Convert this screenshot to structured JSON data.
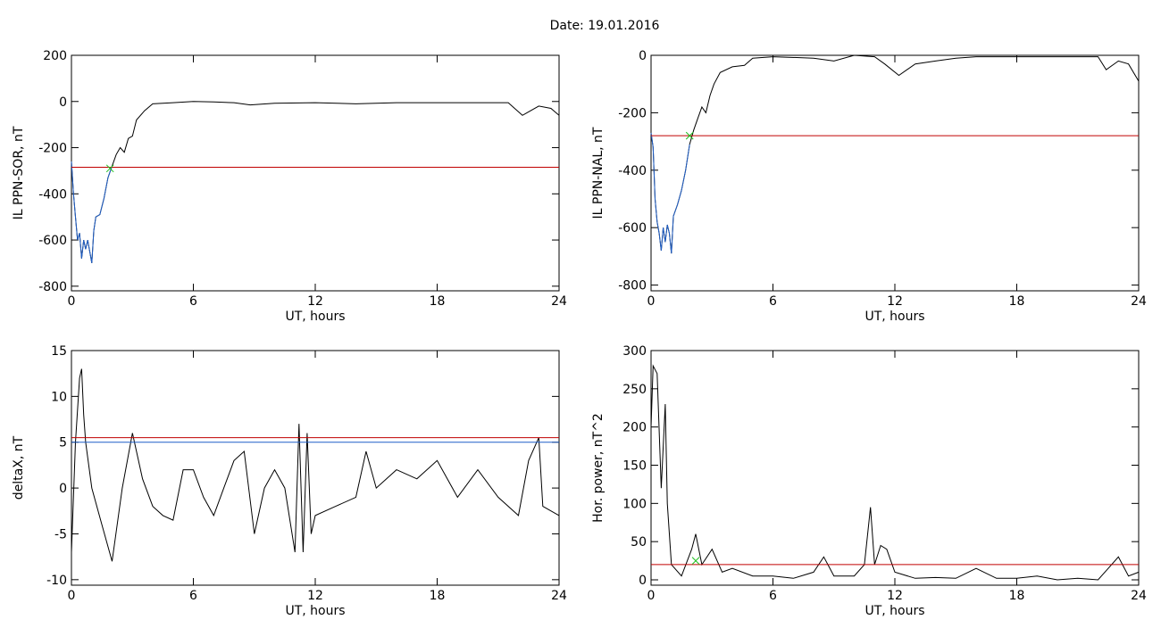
{
  "title": "Date:  19.01.2016",
  "chart_data": [
    {
      "type": "line",
      "xlabel": "UT, hours",
      "ylabel": "IL PPN-SOR, nT",
      "xlim": [
        0,
        24
      ],
      "xticks": [
        0,
        6,
        12,
        18,
        24
      ],
      "ylim": [
        -820,
        200
      ],
      "yticks": [
        -800,
        -600,
        -400,
        -200,
        0,
        200
      ],
      "series": [
        {
          "color": "#000000",
          "x": [
            0,
            0.1,
            0.2,
            0.3,
            0.4,
            0.5,
            0.6,
            0.7,
            0.8,
            0.9,
            1.0,
            1.1,
            1.2,
            1.4,
            1.6,
            1.8,
            2.0,
            2.2,
            2.4,
            2.6,
            2.8,
            3.0,
            3.2,
            3.6,
            4.0,
            5,
            6,
            7,
            8,
            8.8,
            10,
            12,
            14,
            16,
            18,
            20,
            21.5,
            22.2,
            22.6,
            23,
            23.6,
            24
          ],
          "values": [
            -260,
            -400,
            -500,
            -600,
            -570,
            -680,
            -600,
            -640,
            -600,
            -650,
            -700,
            -560,
            -500,
            -490,
            -420,
            -330,
            -280,
            -230,
            -200,
            -220,
            -160,
            -150,
            -80,
            -40,
            -10,
            -5,
            0,
            -2,
            -5,
            -15,
            -8,
            -5,
            -10,
            -5,
            -5,
            -5,
            -5,
            -60,
            -40,
            -20,
            -30,
            -60
          ]
        },
        {
          "color": "#1f5fc8",
          "x": [
            0,
            0.1,
            0.2,
            0.3,
            0.4,
            0.5,
            0.6,
            0.7,
            0.8,
            0.9,
            1.0,
            1.1,
            1.2,
            1.4,
            1.6,
            1.8,
            2.0
          ],
          "values": [
            -260,
            -400,
            -500,
            -600,
            -570,
            -680,
            -600,
            -640,
            -600,
            -650,
            -700,
            -560,
            -500,
            -490,
            -420,
            -330,
            -280
          ]
        },
        {
          "color": "#c00000",
          "x": [
            0,
            24
          ],
          "values": [
            -285,
            -285
          ]
        },
        {
          "color": "#20c020",
          "marker": "x",
          "x": [
            1.9
          ],
          "values": [
            -290
          ]
        }
      ]
    },
    {
      "type": "line",
      "xlabel": "UT, hours",
      "ylabel": "IL PPN-NAL, nT",
      "xlim": [
        0,
        24
      ],
      "xticks": [
        0,
        6,
        12,
        18,
        24
      ],
      "ylim": [
        -820,
        0
      ],
      "yticks": [
        -800,
        -600,
        -400,
        -200,
        0
      ],
      "series": [
        {
          "color": "#000000",
          "x": [
            0,
            0.1,
            0.2,
            0.3,
            0.4,
            0.5,
            0.6,
            0.7,
            0.8,
            0.9,
            1.0,
            1.1,
            1.3,
            1.5,
            1.7,
            1.9,
            2.1,
            2.3,
            2.5,
            2.7,
            2.9,
            3.1,
            3.4,
            4,
            4.6,
            5,
            6,
            8,
            9,
            10,
            11,
            11.5,
            12.2,
            13,
            14,
            15,
            16,
            18,
            20,
            22,
            22.4,
            23,
            23.5,
            24
          ],
          "values": [
            -270,
            -320,
            -500,
            -580,
            -620,
            -680,
            -600,
            -650,
            -590,
            -620,
            -690,
            -560,
            -520,
            -470,
            -400,
            -310,
            -260,
            -220,
            -180,
            -200,
            -140,
            -100,
            -60,
            -40,
            -35,
            -10,
            -5,
            -10,
            -20,
            0,
            -5,
            -30,
            -70,
            -30,
            -20,
            -10,
            -5,
            -5,
            -5,
            -5,
            -50,
            -20,
            -30,
            -90
          ]
        },
        {
          "color": "#1f5fc8",
          "x": [
            0,
            0.1,
            0.2,
            0.3,
            0.4,
            0.5,
            0.6,
            0.7,
            0.8,
            0.9,
            1.0,
            1.1,
            1.3,
            1.5,
            1.7,
            1.9
          ],
          "values": [
            -270,
            -320,
            -500,
            -580,
            -620,
            -680,
            -600,
            -650,
            -590,
            -620,
            -690,
            -560,
            -520,
            -470,
            -400,
            -310
          ]
        },
        {
          "color": "#c00000",
          "x": [
            0,
            24
          ],
          "values": [
            -280,
            -280
          ]
        },
        {
          "color": "#20c020",
          "marker": "x",
          "x": [
            1.9
          ],
          "values": [
            -280
          ]
        }
      ]
    },
    {
      "type": "line",
      "xlabel": "UT, hours",
      "ylabel": "deltaX, nT",
      "xlim": [
        0,
        24
      ],
      "xticks": [
        0,
        6,
        12,
        18,
        24
      ],
      "ylim": [
        -10.6,
        15
      ],
      "yticks": [
        -10,
        -5,
        0,
        5,
        10,
        15
      ],
      "series": [
        {
          "color": "#000000",
          "x": [
            0,
            0.2,
            0.4,
            0.5,
            0.6,
            0.7,
            1.0,
            1.5,
            2.0,
            2.5,
            3.0,
            3.5,
            4,
            4.5,
            5,
            5.5,
            6,
            6.5,
            7,
            7.5,
            8,
            8.5,
            9,
            9.5,
            10,
            10.5,
            11,
            11.2,
            11.4,
            11.6,
            11.8,
            12,
            13,
            14,
            14.5,
            15,
            16,
            17,
            18,
            19,
            20,
            21,
            22,
            22.5,
            23,
            23.2,
            24
          ],
          "values": [
            -7,
            5,
            12,
            13,
            8,
            5,
            0,
            -4,
            -8,
            0,
            6,
            1,
            -2,
            -3,
            -3.5,
            2,
            2,
            -1,
            -3,
            0,
            3,
            4,
            -5,
            0,
            2,
            0,
            -7,
            7,
            -7,
            6,
            -5,
            -3,
            -2,
            -1,
            4,
            0,
            2,
            1,
            3,
            -1,
            2,
            -1,
            -3,
            3,
            5.5,
            -2,
            -3
          ]
        },
        {
          "color": "#c00000",
          "x": [
            0,
            24
          ],
          "values": [
            5.5,
            5.5
          ]
        },
        {
          "color": "#1f5fc8",
          "x": [
            0,
            24
          ],
          "values": [
            5,
            5
          ]
        }
      ]
    },
    {
      "type": "line",
      "xlabel": "UT, hours",
      "ylabel": "Hor. power, nT^2",
      "xlim": [
        0,
        24
      ],
      "xticks": [
        0,
        6,
        12,
        18,
        24
      ],
      "ylim": [
        -7,
        300
      ],
      "yticks": [
        0,
        50,
        100,
        150,
        200,
        250,
        300
      ],
      "series": [
        {
          "color": "#000000",
          "x": [
            0,
            0.1,
            0.3,
            0.5,
            0.7,
            0.8,
            1.0,
            1.5,
            2.0,
            2.2,
            2.5,
            3,
            3.5,
            4,
            5,
            6,
            7,
            8,
            8.5,
            9,
            10,
            10.5,
            10.8,
            11,
            11.3,
            11.6,
            12,
            13,
            14,
            15,
            16,
            17,
            18,
            19,
            20,
            21,
            22,
            22.5,
            23,
            23.5,
            24
          ],
          "values": [
            200,
            280,
            270,
            120,
            230,
            100,
            20,
            5,
            40,
            60,
            20,
            40,
            10,
            15,
            5,
            5,
            2,
            10,
            30,
            5,
            5,
            20,
            95,
            20,
            45,
            40,
            10,
            2,
            3,
            2,
            15,
            2,
            2,
            5,
            0,
            2,
            0,
            15,
            30,
            5,
            10
          ]
        },
        {
          "color": "#c00000",
          "x": [
            0,
            24
          ],
          "values": [
            20,
            20
          ]
        },
        {
          "color": "#20c020",
          "marker": "x",
          "x": [
            2.2
          ],
          "values": [
            25
          ]
        }
      ]
    }
  ]
}
